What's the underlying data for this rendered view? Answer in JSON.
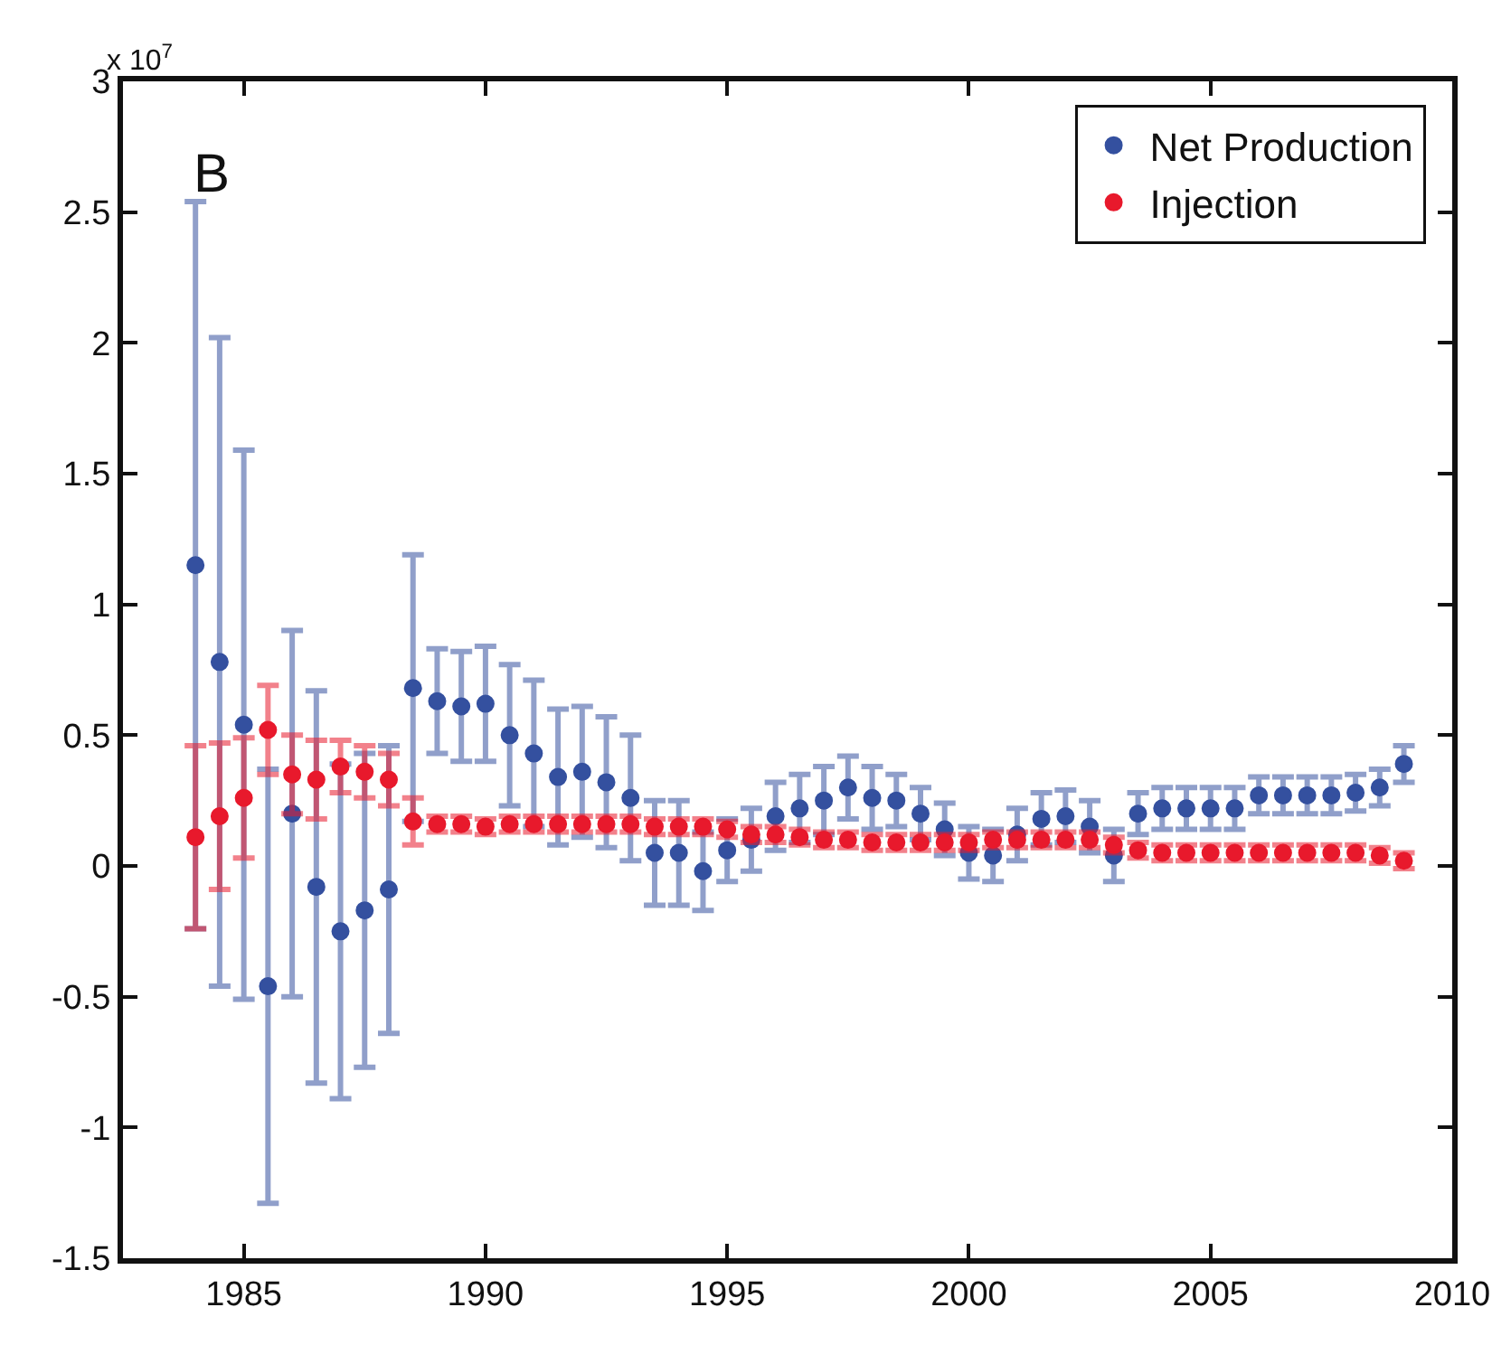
{
  "chart_data": {
    "type": "scatter",
    "x": [
      1984,
      1984.5,
      1985,
      1985.5,
      1986,
      1986.5,
      1987,
      1987.5,
      1988,
      1988.5,
      1989,
      1989.5,
      1990,
      1990.5,
      1991,
      1991.5,
      1992,
      1992.5,
      1993,
      1993.5,
      1994,
      1994.5,
      1995,
      1995.5,
      1996,
      1996.5,
      1997,
      1997.5,
      1998,
      1998.5,
      1999,
      1999.5,
      2000,
      2000.5,
      2001,
      2001.5,
      2002,
      2002.5,
      2003,
      2003.5,
      2004,
      2004.5,
      2005,
      2005.5,
      2006,
      2006.5,
      2007,
      2007.5,
      2008,
      2008.5,
      2009
    ],
    "series": [
      {
        "name": "Net Production",
        "color": "#34509f",
        "values": [
          1.15,
          0.78,
          0.54,
          -0.46,
          0.2,
          -0.08,
          -0.25,
          -0.17,
          -0.09,
          0.68,
          0.63,
          0.61,
          0.62,
          0.5,
          0.43,
          0.34,
          0.36,
          0.32,
          0.26,
          0.05,
          0.05,
          -0.02,
          0.06,
          0.1,
          0.19,
          0.22,
          0.25,
          0.3,
          0.26,
          0.25,
          0.2,
          0.14,
          0.05,
          0.04,
          0.12,
          0.18,
          0.19,
          0.15,
          0.04,
          0.2,
          0.22,
          0.22,
          0.22,
          0.22,
          0.27,
          0.27,
          0.27,
          0.27,
          0.28,
          0.3,
          0.39
        ],
        "errors": [
          1.39,
          1.24,
          1.05,
          0.83,
          0.7,
          0.75,
          0.64,
          0.6,
          0.55,
          0.51,
          0.2,
          0.21,
          0.22,
          0.27,
          0.28,
          0.26,
          0.25,
          0.25,
          0.24,
          0.2,
          0.2,
          0.15,
          0.12,
          0.12,
          0.13,
          0.13,
          0.13,
          0.12,
          0.12,
          0.1,
          0.1,
          0.1,
          0.1,
          0.1,
          0.1,
          0.1,
          0.1,
          0.1,
          0.1,
          0.08,
          0.08,
          0.08,
          0.08,
          0.08,
          0.07,
          0.07,
          0.07,
          0.07,
          0.07,
          0.07,
          0.07
        ]
      },
      {
        "name": "Injection",
        "color": "#e8192c",
        "values": [
          0.11,
          0.19,
          0.26,
          0.52,
          0.35,
          0.33,
          0.38,
          0.36,
          0.33,
          0.17,
          0.16,
          0.16,
          0.15,
          0.16,
          0.16,
          0.16,
          0.16,
          0.16,
          0.16,
          0.15,
          0.15,
          0.15,
          0.14,
          0.12,
          0.12,
          0.11,
          0.1,
          0.1,
          0.09,
          0.09,
          0.09,
          0.09,
          0.09,
          0.1,
          0.1,
          0.1,
          0.1,
          0.1,
          0.08,
          0.06,
          0.05,
          0.05,
          0.05,
          0.05,
          0.05,
          0.05,
          0.05,
          0.05,
          0.05,
          0.04,
          0.02
        ],
        "errors": [
          0.35,
          0.28,
          0.23,
          0.17,
          0.15,
          0.15,
          0.1,
          0.1,
          0.1,
          0.09,
          0.03,
          0.03,
          0.03,
          0.03,
          0.03,
          0.03,
          0.03,
          0.03,
          0.03,
          0.03,
          0.03,
          0.03,
          0.03,
          0.03,
          0.03,
          0.03,
          0.03,
          0.03,
          0.03,
          0.03,
          0.03,
          0.03,
          0.03,
          0.03,
          0.03,
          0.03,
          0.03,
          0.03,
          0.03,
          0.03,
          0.03,
          0.03,
          0.03,
          0.03,
          0.03,
          0.03,
          0.03,
          0.03,
          0.03,
          0.03,
          0.03
        ]
      }
    ],
    "xlim": [
      1982.5,
      2010
    ],
    "xticks": [
      1985,
      1990,
      1995,
      2000,
      2005,
      2010
    ],
    "ylim": [
      -1.5,
      3
    ],
    "yticks": [
      -1.5,
      -1,
      -0.5,
      0,
      0.5,
      1,
      1.5,
      2,
      2.5,
      3
    ],
    "annotations": [
      "B",
      "x 10$^{7}$"
    ],
    "legend": "top right",
    "grid": false,
    "marker": "circle"
  }
}
